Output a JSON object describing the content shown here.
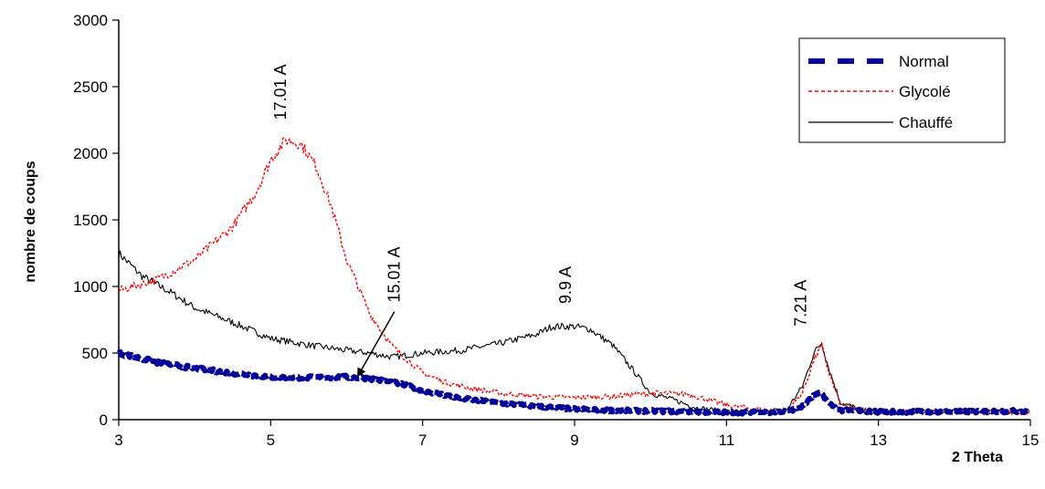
{
  "chart_data": {
    "type": "line",
    "title": "",
    "xlabel": "2 Theta",
    "ylabel": "nombre de coups",
    "xlim": [
      3,
      15
    ],
    "ylim": [
      0,
      3000
    ],
    "x_ticks": [
      3,
      5,
      7,
      9,
      11,
      13,
      15
    ],
    "y_ticks": [
      0,
      500,
      1000,
      1500,
      2000,
      2500,
      3000
    ],
    "grid": false,
    "legend_position": "top-right",
    "series": [
      {
        "name": "Normal",
        "color": "#000099",
        "style": "dashed-thick",
        "points": [
          [
            3,
            500
          ],
          [
            3.5,
            430
          ],
          [
            4,
            385
          ],
          [
            4.5,
            350
          ],
          [
            5,
            320
          ],
          [
            5.5,
            315
          ],
          [
            6,
            320
          ],
          [
            6.3,
            310
          ],
          [
            6.7,
            270
          ],
          [
            7,
            220
          ],
          [
            7.5,
            160
          ],
          [
            8,
            125
          ],
          [
            8.5,
            100
          ],
          [
            9,
            80
          ],
          [
            9.5,
            70
          ],
          [
            10,
            65
          ],
          [
            10.5,
            60
          ],
          [
            11,
            55
          ],
          [
            11.5,
            55
          ],
          [
            11.8,
            60
          ],
          [
            12,
            100
          ],
          [
            12.15,
            180
          ],
          [
            12.25,
            200
          ],
          [
            12.35,
            120
          ],
          [
            12.5,
            70
          ],
          [
            13,
            60
          ],
          [
            14,
            60
          ],
          [
            15,
            65
          ]
        ]
      },
      {
        "name": "Glycolé",
        "color": "#ff0000",
        "style": "dotted",
        "points": [
          [
            3,
            970
          ],
          [
            3.5,
            1050
          ],
          [
            4,
            1200
          ],
          [
            4.5,
            1450
          ],
          [
            4.8,
            1700
          ],
          [
            5,
            1950
          ],
          [
            5.2,
            2100
          ],
          [
            5.4,
            2070
          ],
          [
            5.6,
            1900
          ],
          [
            5.8,
            1600
          ],
          [
            6,
            1200
          ],
          [
            6.3,
            800
          ],
          [
            6.6,
            550
          ],
          [
            7,
            350
          ],
          [
            7.3,
            280
          ],
          [
            7.6,
            240
          ],
          [
            8,
            200
          ],
          [
            8.5,
            175
          ],
          [
            9,
            165
          ],
          [
            9.5,
            175
          ],
          [
            10,
            200
          ],
          [
            10.5,
            190
          ],
          [
            11,
            110
          ],
          [
            11.5,
            70
          ],
          [
            11.8,
            70
          ],
          [
            12,
            200
          ],
          [
            12.15,
            450
          ],
          [
            12.25,
            560
          ],
          [
            12.35,
            350
          ],
          [
            12.5,
            110
          ],
          [
            12.8,
            70
          ],
          [
            13,
            60
          ],
          [
            14,
            55
          ],
          [
            15,
            55
          ]
        ]
      },
      {
        "name": "Chauffé",
        "color": "#000000",
        "style": "solid",
        "points": [
          [
            3,
            1250
          ],
          [
            3.3,
            1080
          ],
          [
            3.7,
            950
          ],
          [
            4,
            840
          ],
          [
            4.5,
            730
          ],
          [
            5,
            610
          ],
          [
            5.5,
            560
          ],
          [
            6,
            520
          ],
          [
            6.3,
            500
          ],
          [
            6.6,
            470
          ],
          [
            7,
            500
          ],
          [
            7.5,
            520
          ],
          [
            8,
            570
          ],
          [
            8.5,
            640
          ],
          [
            8.7,
            700
          ],
          [
            9,
            700
          ],
          [
            9.2,
            680
          ],
          [
            9.5,
            560
          ],
          [
            9.8,
            350
          ],
          [
            10,
            200
          ],
          [
            10.3,
            150
          ],
          [
            10.6,
            90
          ],
          [
            11,
            60
          ],
          [
            11.5,
            60
          ],
          [
            11.8,
            80
          ],
          [
            12,
            250
          ],
          [
            12.15,
            500
          ],
          [
            12.25,
            580
          ],
          [
            12.35,
            380
          ],
          [
            12.5,
            130
          ],
          [
            12.8,
            70
          ],
          [
            13,
            60
          ],
          [
            14,
            60
          ],
          [
            15,
            60
          ]
        ]
      }
    ],
    "annotations": [
      {
        "text": "17.01 A",
        "x": 5.2,
        "y": 2250,
        "rotation": -90
      },
      {
        "text": "15.01 A",
        "x": 6.7,
        "y": 880,
        "rotation": -90,
        "arrow_to": [
          6.15,
          330
        ]
      },
      {
        "text": "9.9 A",
        "x": 8.95,
        "y": 870,
        "rotation": -90
      },
      {
        "text": "7.21 A",
        "x": 12.05,
        "y": 700,
        "rotation": -90
      }
    ]
  }
}
